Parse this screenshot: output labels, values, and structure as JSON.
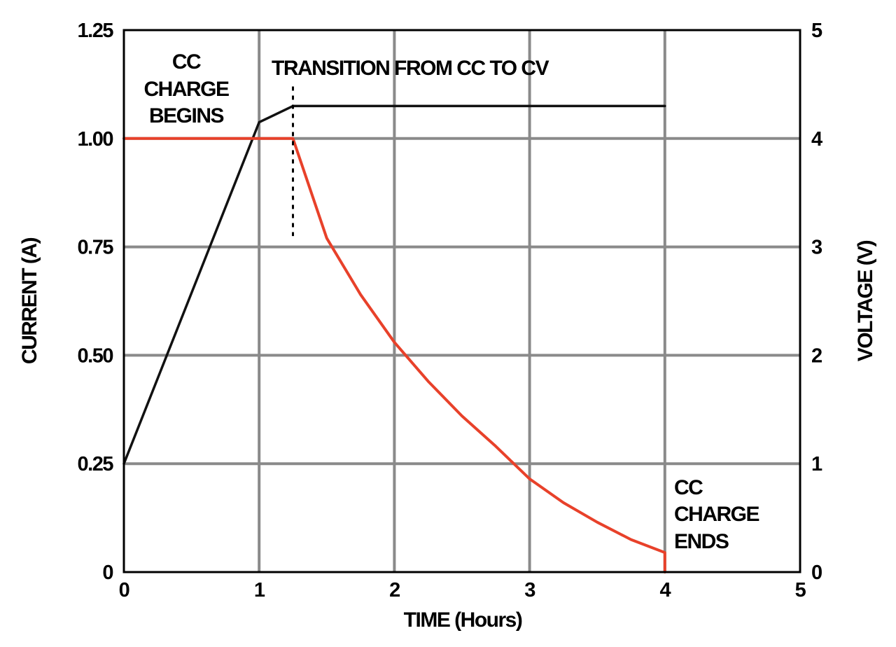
{
  "chart_data": {
    "type": "line",
    "title": "",
    "xlabel": "TIME (Hours)",
    "ylabel": "CURRENT (A)",
    "y2label": "VOLTAGE (V)",
    "xlim": [
      0,
      5
    ],
    "ylim": [
      0,
      1.25
    ],
    "y2lim": [
      0,
      5
    ],
    "grid": true,
    "x_ticks": [
      "0",
      "1",
      "2",
      "3",
      "4",
      "5"
    ],
    "y_ticks": [
      "0",
      "0.25",
      "0.50",
      "0.75",
      "1.00",
      "1.25"
    ],
    "y2_ticks": [
      "0",
      "1",
      "2",
      "3",
      "4",
      "5"
    ],
    "series": [
      {
        "name": "Voltage",
        "axis": "right",
        "color": "#111111",
        "x": [
          0,
          1,
          1.25,
          4
        ],
        "y": [
          1.0,
          4.15,
          4.3,
          4.3
        ]
      },
      {
        "name": "Current",
        "axis": "left",
        "color": "#e8412a",
        "x": [
          0,
          1.25,
          1.5,
          1.75,
          2.0,
          2.25,
          2.5,
          2.75,
          3.0,
          3.25,
          3.5,
          3.75,
          4.0,
          4.0
        ],
        "y": [
          1.0,
          1.0,
          0.77,
          0.64,
          0.53,
          0.44,
          0.36,
          0.29,
          0.215,
          0.16,
          0.115,
          0.075,
          0.045,
          0.0
        ]
      }
    ],
    "transition_marker": {
      "x": 1.25,
      "y_from": 0.775,
      "y_to": 1.12
    },
    "annotations": [
      {
        "id": "cc-begins",
        "lines": [
          "CC",
          "CHARGE",
          "BEGINS"
        ]
      },
      {
        "id": "transition",
        "lines": [
          "TRANSITION FROM CC TO CV"
        ]
      },
      {
        "id": "cc-ends",
        "lines": [
          "CC",
          "CHARGE",
          "ENDS"
        ]
      }
    ]
  }
}
